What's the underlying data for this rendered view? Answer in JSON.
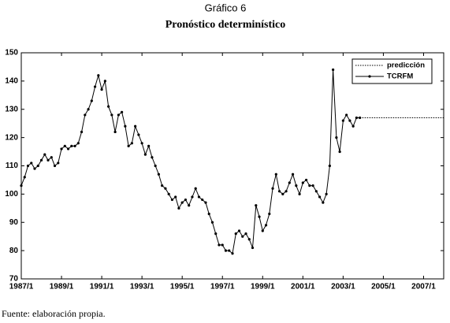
{
  "chart_data": {
    "type": "line",
    "title": "Gráfico 6",
    "subtitle": "Pronóstico determinístico",
    "source": "Fuente: elaboración propia.",
    "legend": "upper right",
    "xlim": [
      "1987/1",
      "2008/1"
    ],
    "xticks": [
      "1987/1",
      "1989/1",
      "1991/1",
      "1993/1",
      "1995/1",
      "1997/1",
      "1999/1",
      "2001/1",
      "2003/1",
      "2005/1",
      "2007/1"
    ],
    "ylim": [
      70,
      150
    ],
    "yticks": [
      70,
      80,
      90,
      100,
      110,
      120,
      130,
      140,
      150
    ],
    "series": [
      {
        "name": "predicción",
        "color": "#000000",
        "style": "dotted",
        "x": [
          "2003/11",
          "2008/1"
        ],
        "values": [
          127,
          127
        ]
      },
      {
        "name": "TCRFM",
        "color": "#000000",
        "style": "solid-markers",
        "x": [
          "1987/1",
          "1987/3",
          "1987/5",
          "1987/7",
          "1987/9",
          "1987/11",
          "1988/1",
          "1988/3",
          "1988/5",
          "1988/7",
          "1988/9",
          "1988/11",
          "1989/1",
          "1989/3",
          "1989/5",
          "1989/7",
          "1989/9",
          "1989/11",
          "1990/1",
          "1990/3",
          "1990/5",
          "1990/7",
          "1990/9",
          "1990/11",
          "1991/1",
          "1991/3",
          "1991/5",
          "1991/7",
          "1991/9",
          "1991/11",
          "1992/1",
          "1992/3",
          "1992/5",
          "1992/7",
          "1992/9",
          "1992/11",
          "1993/1",
          "1993/3",
          "1993/5",
          "1993/7",
          "1993/9",
          "1993/11",
          "1994/1",
          "1994/3",
          "1994/5",
          "1994/7",
          "1994/9",
          "1994/11",
          "1995/1",
          "1995/3",
          "1995/5",
          "1995/7",
          "1995/9",
          "1995/11",
          "1996/1",
          "1996/3",
          "1996/5",
          "1996/7",
          "1996/9",
          "1996/11",
          "1997/1",
          "1997/3",
          "1997/5",
          "1997/7",
          "1997/9",
          "1997/11",
          "1998/1",
          "1998/3",
          "1998/5",
          "1998/7",
          "1998/9",
          "1998/11",
          "1999/1",
          "1999/3",
          "1999/5",
          "1999/7",
          "1999/9",
          "1999/11",
          "2000/1",
          "2000/3",
          "2000/5",
          "2000/7",
          "2000/9",
          "2000/11",
          "2001/1",
          "2001/3",
          "2001/5",
          "2001/7",
          "2001/9",
          "2001/11",
          "2002/1",
          "2002/3",
          "2002/5",
          "2002/7",
          "2002/9",
          "2002/11",
          "2003/1",
          "2003/3",
          "2003/5",
          "2003/7",
          "2003/9",
          "2003/11"
        ],
        "values": [
          103,
          106,
          110,
          111,
          109,
          110,
          112,
          114,
          112,
          113,
          110,
          111,
          116,
          117,
          116,
          117,
          117,
          118,
          122,
          128,
          130,
          133,
          138,
          142,
          137,
          140,
          131,
          128,
          122,
          128,
          129,
          124,
          117,
          118,
          124,
          121,
          118,
          114,
          117,
          113,
          110,
          107,
          103,
          102,
          100,
          98,
          99,
          95,
          97,
          98,
          96,
          99,
          102,
          99,
          98,
          97,
          93,
          90,
          86,
          82,
          82,
          80,
          80,
          79,
          86,
          87,
          85,
          86,
          84,
          81,
          96,
          92,
          87,
          89,
          93,
          102,
          107,
          101,
          100,
          101,
          104,
          107,
          103,
          100,
          104,
          105,
          103,
          103,
          101,
          99,
          97,
          100,
          110,
          144,
          120,
          115,
          126,
          128,
          126,
          124,
          127,
          127
        ]
      }
    ]
  }
}
